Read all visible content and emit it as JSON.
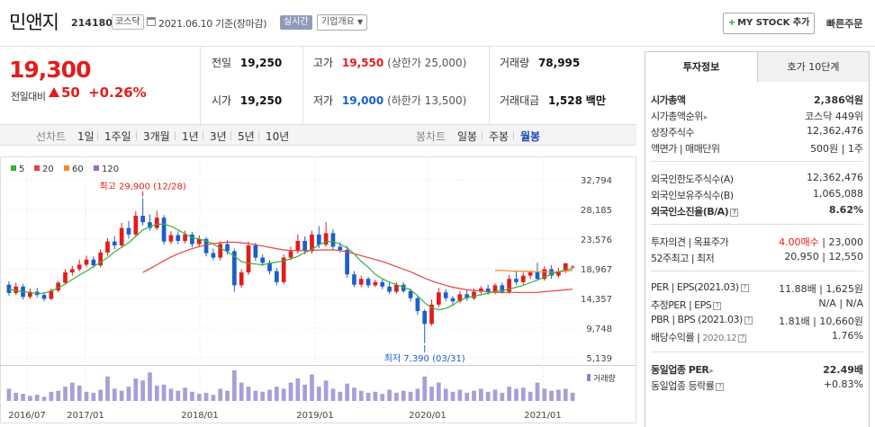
{
  "header": {
    "stock_name": "민앤지",
    "stock_code": "214180",
    "market_badge": "코스닥",
    "date_text": "2021.06.10 기준(장마감)",
    "realtime_label": "실시간",
    "company_btn": "기업개요",
    "mystock_btn": "MY STOCK 추가",
    "quick_order": "빠른주문"
  },
  "price": {
    "current": "19,300",
    "change_label": "전일대비",
    "change_value": "50",
    "change_pct": "+0.26%"
  },
  "summary": {
    "prev_label": "전일",
    "prev_value": "19,250",
    "high_label": "고가",
    "high_value": "19,550",
    "upper_limit": "(상한가 25,000)",
    "volume_label": "거래량",
    "volume_value": "78,995",
    "open_label": "시가",
    "open_value": "19,250",
    "low_label": "저가",
    "low_value": "19,000",
    "lower_limit": "(하한가 13,500)",
    "amount_label": "거래대금",
    "amount_value": "1,528",
    "amount_unit": "백만"
  },
  "period_bar": {
    "line_label": "선차트",
    "line_periods": [
      "1일",
      "1주일",
      "3개월",
      "1년",
      "3년",
      "5년",
      "10년"
    ],
    "candle_label": "봉차트",
    "candle_periods": [
      "일봉",
      "주봉",
      "월봉"
    ],
    "active": "월봉"
  },
  "colors": {
    "up": "#e31c1c",
    "down": "#1b5fcc",
    "ma5": "#3cae3c",
    "ma20": "#e64040",
    "ma60": "#f08a24",
    "ma120": "#9b6bc4"
  },
  "chart_data": {
    "type": "candlestick",
    "legend": [
      "5",
      "20",
      "60",
      "120"
    ],
    "y_ticks": [
      "32,794",
      "28,185",
      "23,576",
      "18,967",
      "14,357",
      "9,748",
      "5,139"
    ],
    "y_range": [
      5139,
      32794
    ],
    "x_ticks": [
      "2016/07",
      "2017/01",
      "2018/01",
      "2019/01",
      "2020/01",
      "2021/01"
    ],
    "volume_label": "거래량",
    "annotation_high": "최고 29,900 (12/28)",
    "annotation_low": "최저 7,390 (03/31)",
    "candles": [
      [
        16500,
        15200,
        17000,
        14800
      ],
      [
        15200,
        16200,
        16800,
        14900
      ],
      [
        16200,
        14600,
        16600,
        14200
      ],
      [
        14600,
        15400,
        15900,
        14300
      ],
      [
        15400,
        14900,
        16000,
        14500
      ],
      [
        14900,
        14300,
        15300,
        13900
      ],
      [
        14300,
        15600,
        15900,
        14100
      ],
      [
        15600,
        16800,
        17100,
        15300
      ],
      [
        16800,
        18400,
        18900,
        16500
      ],
      [
        18400,
        18900,
        19400,
        17900
      ],
      [
        18900,
        19600,
        20400,
        18600
      ],
      [
        19600,
        20400,
        21000,
        19200
      ],
      [
        20400,
        19500,
        20900,
        19100
      ],
      [
        19500,
        21500,
        22000,
        19200
      ],
      [
        21500,
        23200,
        23700,
        21000
      ],
      [
        23200,
        22600,
        24000,
        22000
      ],
      [
        22600,
        25300,
        26100,
        22300
      ],
      [
        25300,
        24300,
        26400,
        23700
      ],
      [
        24300,
        27200,
        27900,
        23900
      ],
      [
        27200,
        26200,
        29900,
        25700
      ],
      [
        26200,
        25300,
        27400,
        24900
      ],
      [
        25300,
        26900,
        28000,
        25000
      ],
      [
        26900,
        23200,
        27300,
        22700
      ],
      [
        23200,
        24200,
        24800,
        22800
      ],
      [
        24200,
        23300,
        24800,
        22800
      ],
      [
        23300,
        24300,
        24900,
        22900
      ],
      [
        24300,
        22800,
        24700,
        22300
      ],
      [
        22800,
        23600,
        24200,
        22400
      ],
      [
        23600,
        21400,
        23900,
        20900
      ],
      [
        21400,
        20700,
        22100,
        20300
      ],
      [
        20700,
        22800,
        23200,
        20300
      ],
      [
        22800,
        21700,
        23400,
        21200
      ],
      [
        21700,
        16400,
        22100,
        15400
      ],
      [
        16400,
        18400,
        18900,
        16000
      ],
      [
        18400,
        22600,
        23200,
        18000
      ],
      [
        22600,
        20700,
        23000,
        20200
      ],
      [
        20700,
        19900,
        21200,
        19400
      ],
      [
        19900,
        18600,
        20300,
        18100
      ],
      [
        18600,
        16900,
        19100,
        16400
      ],
      [
        16900,
        20700,
        21200,
        16600
      ],
      [
        20700,
        21700,
        22400,
        20300
      ],
      [
        21700,
        23300,
        24300,
        21300
      ],
      [
        23300,
        21700,
        24000,
        21200
      ],
      [
        21700,
        24300,
        24900,
        21300
      ],
      [
        24300,
        22700,
        25600,
        22200
      ],
      [
        22700,
        24500,
        26200,
        22400
      ],
      [
        24500,
        22400,
        25100,
        21800
      ],
      [
        22400,
        21900,
        23100,
        21500
      ],
      [
        21900,
        18100,
        22500,
        17600
      ],
      [
        18100,
        16500,
        18600,
        16100
      ],
      [
        16500,
        17400,
        17900,
        16100
      ],
      [
        17400,
        16400,
        17700,
        16000
      ],
      [
        16400,
        16900,
        17300,
        16100
      ],
      [
        16900,
        16200,
        17300,
        15800
      ],
      [
        16200,
        15400,
        16800,
        15100
      ],
      [
        15400,
        16500,
        16900,
        15100
      ],
      [
        16500,
        15500,
        16900,
        15200
      ],
      [
        15500,
        14400,
        15900,
        13900
      ],
      [
        14400,
        12400,
        14700,
        11800
      ],
      [
        12400,
        10400,
        12700,
        7390
      ],
      [
        10400,
        13400,
        14200,
        10100
      ],
      [
        13400,
        15300,
        16000,
        13000
      ],
      [
        15300,
        14400,
        15800,
        13900
      ],
      [
        14400,
        13900,
        14700,
        13400
      ],
      [
        13900,
        15000,
        15500,
        13600
      ],
      [
        15000,
        14400,
        15600,
        14000
      ],
      [
        14400,
        15400,
        15900,
        14100
      ],
      [
        15400,
        15900,
        16300,
        15000
      ],
      [
        15900,
        15400,
        16500,
        14900
      ],
      [
        15400,
        16400,
        16700,
        15000
      ],
      [
        16400,
        15400,
        16800,
        15100
      ],
      [
        15400,
        17400,
        18000,
        15100
      ],
      [
        17400,
        16900,
        18500,
        16500
      ],
      [
        16900,
        17900,
        18400,
        16500
      ],
      [
        17900,
        18400,
        18700,
        17400
      ],
      [
        18400,
        17400,
        19900,
        17100
      ],
      [
        17400,
        18900,
        19400,
        17100
      ],
      [
        18900,
        17900,
        19500,
        17400
      ],
      [
        17900,
        18600,
        19100,
        17600
      ],
      [
        18600,
        19800,
        19900,
        18300
      ],
      [
        19250,
        19300,
        19550,
        19000
      ]
    ],
    "ma5": [
      15800,
      15600,
      15400,
      15300,
      15100,
      15200,
      15500,
      16000,
      16600,
      17300,
      18000,
      18600,
      19300,
      20000,
      20700,
      21600,
      22300,
      23000,
      24000,
      25000,
      25500,
      25900,
      25900,
      25600,
      25000,
      24400,
      23800,
      23600,
      23300,
      22800,
      22200,
      21600,
      20900,
      20100,
      19800,
      19700,
      19600,
      19800,
      20000,
      20200,
      20500,
      20900,
      21500,
      22000,
      22700,
      23200,
      23200,
      22800,
      22200,
      21300,
      20100,
      19200,
      18100,
      17400,
      16900,
      16500,
      16100,
      15700,
      14800,
      13700,
      12900,
      12600,
      12800,
      13300,
      14100,
      14500,
      14700,
      14900,
      15200,
      15400,
      15600,
      15800,
      16100,
      16400,
      16800,
      17200,
      17700,
      18100,
      18500,
      18800,
      19000
    ],
    "ma20": [
      null,
      null,
      null,
      null,
      null,
      null,
      null,
      null,
      null,
      null,
      null,
      null,
      null,
      null,
      null,
      null,
      null,
      null,
      null,
      18400,
      19000,
      19600,
      20200,
      20800,
      21300,
      21700,
      22100,
      22400,
      22700,
      22900,
      23000,
      23100,
      23100,
      23000,
      22900,
      22700,
      22500,
      22300,
      22100,
      21900,
      21800,
      21800,
      21800,
      21800,
      21900,
      21900,
      21900,
      21800,
      21600,
      21300,
      21000,
      20700,
      20400,
      20100,
      19700,
      19300,
      18900,
      18500,
      18000,
      17500,
      17100,
      16700,
      16400,
      16100,
      15900,
      15700,
      15600,
      15500,
      15400,
      15300,
      15300,
      15300,
      15300,
      15300,
      15300,
      15300,
      15400,
      15500,
      15600,
      15700,
      15800
    ],
    "ma60": [
      null,
      null,
      null,
      null,
      null,
      null,
      null,
      null,
      null,
      null,
      null,
      null,
      null,
      null,
      null,
      null,
      null,
      null,
      null,
      null,
      null,
      null,
      null,
      null,
      null,
      null,
      null,
      null,
      null,
      null,
      null,
      null,
      null,
      null,
      null,
      null,
      null,
      null,
      null,
      null,
      null,
      null,
      null,
      null,
      null,
      null,
      null,
      null,
      null,
      null,
      null,
      null,
      null,
      null,
      null,
      null,
      null,
      null,
      null,
      null,
      null,
      null,
      null,
      null,
      null,
      null,
      null,
      null,
      null,
      18700,
      18700,
      18650,
      18600,
      18600,
      18550,
      18500,
      18500,
      18450,
      18500,
      18600,
      18700
    ],
    "volumes": [
      12,
      8,
      7,
      5,
      6,
      4,
      9,
      10,
      14,
      18,
      15,
      9,
      8,
      11,
      24,
      12,
      10,
      14,
      22,
      20,
      28,
      15,
      16,
      12,
      10,
      13,
      9,
      7,
      8,
      6,
      12,
      10,
      30,
      18,
      14,
      10,
      9,
      11,
      14,
      12,
      18,
      22,
      16,
      26,
      14,
      20,
      12,
      9,
      17,
      13,
      10,
      8,
      9,
      7,
      11,
      8,
      10,
      9,
      12,
      24,
      14,
      18,
      12,
      9,
      11,
      8,
      10,
      12,
      9,
      11,
      8,
      14,
      12,
      13,
      9,
      18,
      12,
      10,
      11,
      12,
      8
    ]
  },
  "right_panel": {
    "tab_active": "투자정보",
    "tab_inactive": "호가 10단계",
    "market_cap_label": "시가총액",
    "market_cap_value": "2,386억원",
    "rank_label": "시가총액순위",
    "rank_value": "코스닥 449위",
    "shares_label": "상장주식수",
    "shares_value": "12,362,476",
    "par_label": "액면가 | 매매단위",
    "par_value": "500원 | 1주",
    "foreign_limit_label": "외국인한도주식수(A)",
    "foreign_limit_value": "12,362,476",
    "foreign_hold_label": "외국인보유주식수(B)",
    "foreign_hold_value": "1,065,088",
    "foreign_ratio_label": "외국인소진율(B/A)",
    "foreign_ratio_value": "8.62%",
    "opinion_label": "투자의견 | 목표주가",
    "opinion_value": "4.00매수",
    "target_value": "23,000",
    "w52_label": "52주최고 | 최저",
    "w52_value": "20,950 | 12,550",
    "per_label": "PER | EPS(2021.03)",
    "per_value": "11.88배 | 1,625원",
    "est_per_label": "추정PER | EPS",
    "est_per_value": "N/A | N/A",
    "pbr_label": "PBR | BPS (2021.03)",
    "pbr_value": "1.81배 | 10,660원",
    "div_label": "배당수익률",
    "div_date": "2020.12",
    "div_value": "1.76%",
    "ind_per_label": "동일업종 PER",
    "ind_per_value": "22.49배",
    "ind_rate_label": "동일업종 등락률",
    "ind_rate_value": "+0.83%"
  }
}
